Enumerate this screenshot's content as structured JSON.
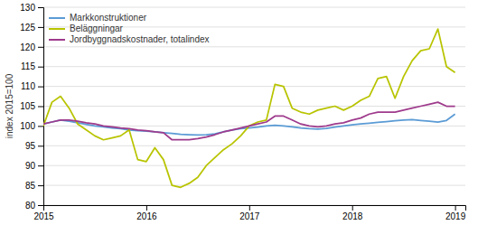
{
  "chart_data": {
    "type": "line",
    "y_label": "index 2015=100",
    "x": [
      2015.0,
      2015.0833333333333,
      2015.1666666666667,
      2015.25,
      2015.3333333333333,
      2015.4166666666667,
      2015.5,
      2015.5833333333333,
      2015.6666666666667,
      2015.75,
      2015.8333333333333,
      2015.9166666666667,
      2016.0,
      2016.0833333333333,
      2016.1666666666667,
      2016.25,
      2016.3333333333333,
      2016.4166666666667,
      2016.5,
      2016.5833333333333,
      2016.6666666666667,
      2016.75,
      2016.8333333333333,
      2016.9166666666667,
      2017.0,
      2017.0833333333333,
      2017.1666666666667,
      2017.25,
      2017.3333333333333,
      2017.4166666666667,
      2017.5,
      2017.5833333333333,
      2017.6666666666667,
      2017.75,
      2017.8333333333333,
      2017.9166666666667,
      2018.0,
      2018.0833333333333,
      2018.1666666666667,
      2018.25,
      2018.3333333333333,
      2018.4166666666667,
      2018.5,
      2018.5833333333333,
      2018.6666666666667,
      2018.75,
      2018.8333333333333,
      2018.9166666666667,
      2019.0
    ],
    "xlim": [
      2015.0,
      2019.1
    ],
    "xticks": [
      2015,
      2016,
      2017,
      2018,
      2019
    ],
    "ylim": [
      80,
      130
    ],
    "yticks": [
      80,
      85,
      90,
      95,
      100,
      105,
      110,
      115,
      120,
      125,
      130
    ],
    "grid": true,
    "legend": "upper left",
    "series": [
      {
        "name": "Markkonstruktioner",
        "color": "#5b9bd5",
        "values": [
          100.5,
          101.0,
          101.5,
          101.2,
          100.8,
          100.4,
          100.0,
          99.8,
          99.5,
          99.3,
          99.0,
          98.8,
          98.7,
          98.5,
          98.3,
          98.1,
          97.9,
          97.8,
          97.7,
          97.8,
          98.0,
          98.5,
          99.0,
          99.3,
          99.5,
          99.7,
          100.0,
          100.2,
          100.0,
          99.8,
          99.5,
          99.3,
          99.2,
          99.4,
          99.7,
          100.0,
          100.3,
          100.5,
          100.7,
          100.9,
          101.1,
          101.3,
          101.5,
          101.6,
          101.4,
          101.2,
          101.0,
          101.4,
          103.0
        ]
      },
      {
        "name": "Beläggningar",
        "color": "#b8c400",
        "values": [
          100.0,
          106.0,
          107.5,
          104.5,
          100.5,
          99.0,
          97.5,
          96.5,
          97.0,
          97.5,
          99.0,
          91.5,
          91.0,
          94.5,
          91.5,
          85.0,
          84.5,
          85.5,
          87.0,
          90.0,
          92.0,
          94.0,
          95.5,
          97.5,
          100.0,
          101.0,
          101.5,
          110.5,
          110.0,
          104.5,
          103.5,
          103.0,
          104.0,
          104.5,
          105.0,
          104.0,
          105.0,
          106.5,
          107.5,
          112.0,
          112.5,
          107.0,
          112.5,
          116.5,
          119.0,
          119.5,
          124.5,
          115.0,
          113.5
        ]
      },
      {
        "name": "Jordbyggnadskostnader, totalindex",
        "color": "#9E3A8C",
        "values": [
          100.5,
          101.0,
          101.5,
          101.5,
          101.2,
          100.8,
          100.5,
          100.0,
          99.8,
          99.5,
          99.3,
          99.0,
          98.8,
          98.5,
          98.3,
          96.5,
          96.5,
          96.5,
          96.8,
          97.2,
          97.8,
          98.5,
          99.0,
          99.5,
          100.0,
          100.5,
          101.0,
          102.5,
          102.5,
          101.5,
          100.5,
          100.0,
          99.8,
          100.0,
          100.5,
          100.8,
          101.5,
          102.0,
          103.0,
          103.5,
          103.5,
          103.5,
          104.0,
          104.5,
          105.0,
          105.5,
          106.0,
          105.0,
          105.0
        ]
      }
    ]
  }
}
